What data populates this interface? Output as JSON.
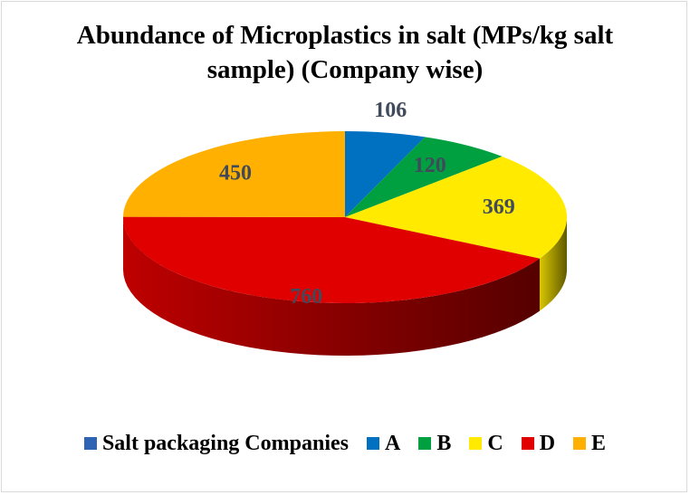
{
  "chart_data": {
    "type": "pie",
    "title": "Abundance of Microplastics in salt (MPs/kg salt sample) (Company wise)",
    "categories": [
      "A",
      "B",
      "C",
      "D",
      "E"
    ],
    "values": [
      106,
      120,
      369,
      760,
      450
    ],
    "series": [
      {
        "name": "Salt packaging Companies",
        "values": [
          106,
          120,
          369,
          760,
          450
        ]
      }
    ],
    "colors": [
      "#0070c0",
      "#00a040",
      "#ffea00",
      "#e00000",
      "#ffb000"
    ],
    "series_color": "#2f64b4",
    "data_label_color": "#404a5a",
    "legend_position": "bottom",
    "style": "3d"
  }
}
